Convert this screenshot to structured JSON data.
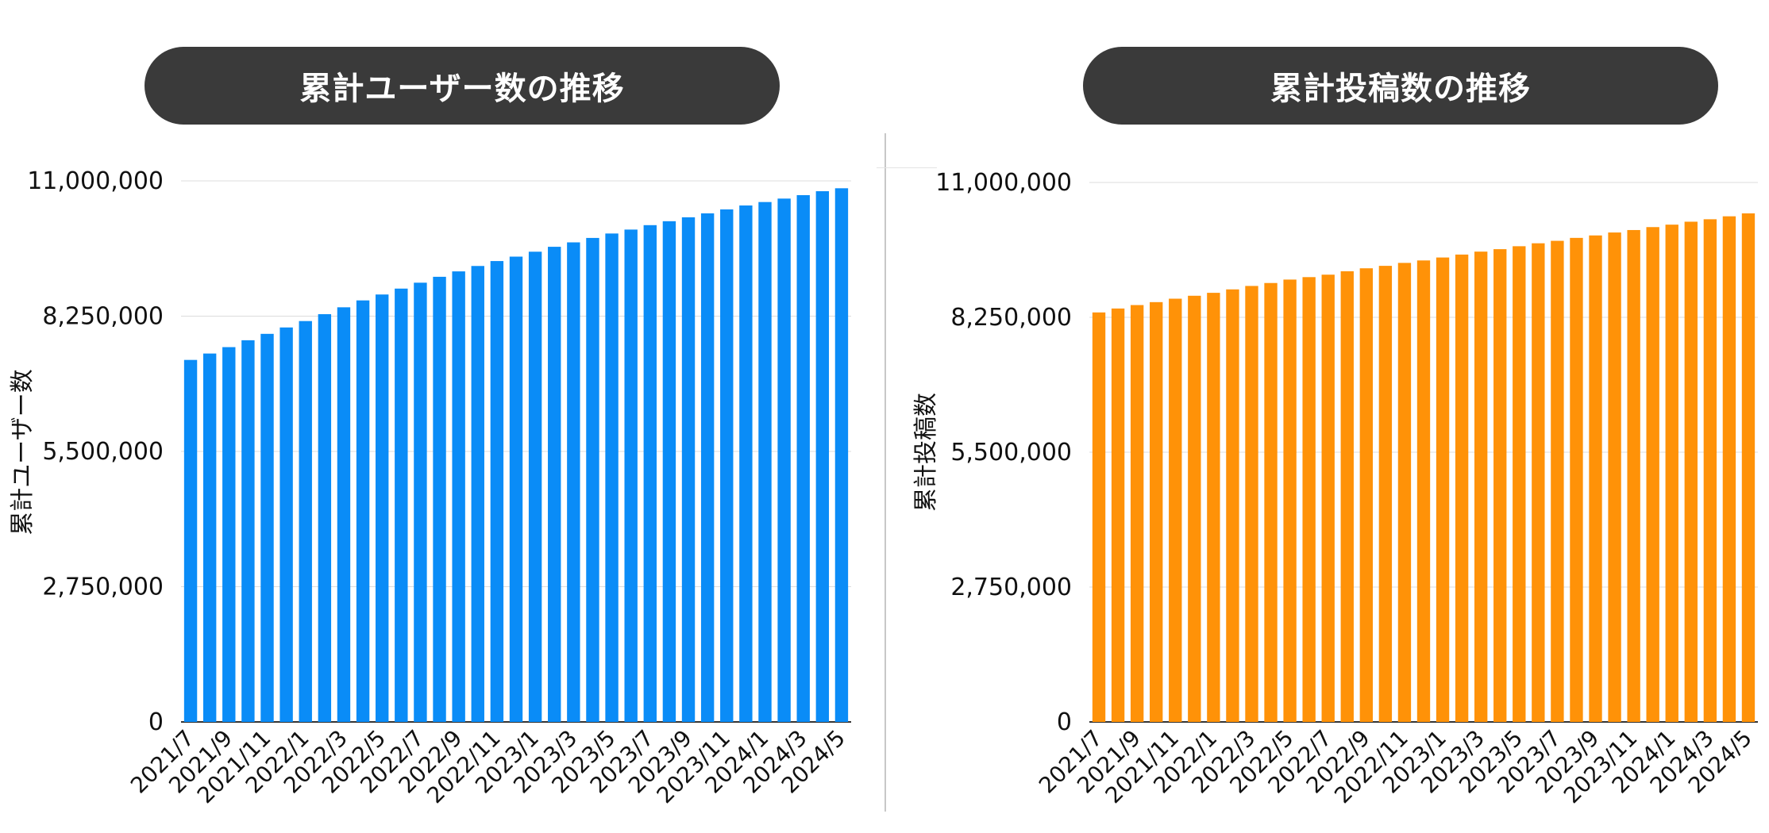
{
  "chart_data": [
    {
      "type": "bar",
      "title": "累計ユーザー数の推移",
      "xlabel": "",
      "ylabel": "累計ユーザー数",
      "color": "#0a8cf7",
      "ylim": [
        0,
        11000000
      ],
      "yticks": [
        0,
        2750000,
        5500000,
        8250000,
        11000000
      ],
      "ytick_labels": [
        "0",
        "2,750,000",
        "5,500,000",
        "8,250,000",
        "11,000,000"
      ],
      "categories": [
        "2021/7",
        "2021/8",
        "2021/9",
        "2021/10",
        "2021/11",
        "2021/12",
        "2022/1",
        "2022/2",
        "2022/3",
        "2022/4",
        "2022/5",
        "2022/6",
        "2022/7",
        "2022/8",
        "2022/9",
        "2022/10",
        "2022/11",
        "2022/12",
        "2023/1",
        "2023/2",
        "2023/3",
        "2023/4",
        "2023/5",
        "2023/6",
        "2023/7",
        "2023/8",
        "2023/9",
        "2023/10",
        "2023/11",
        "2023/12",
        "2024/1",
        "2024/2",
        "2024/3",
        "2024/4",
        "2024/5"
      ],
      "visible_tick_labels": [
        "2021/7",
        "2021/9",
        "2021/11",
        "2022/1",
        "2022/3",
        "2022/5",
        "2022/7",
        "2022/9",
        "2022/11",
        "2023/1",
        "2023/3",
        "2023/5",
        "2023/7",
        "2023/9",
        "2023/11",
        "2024/1",
        "2024/3",
        "2024/5"
      ],
      "values": [
        7360000,
        7490000,
        7620000,
        7760000,
        7890000,
        8020000,
        8150000,
        8290000,
        8430000,
        8570000,
        8690000,
        8810000,
        8930000,
        9050000,
        9160000,
        9270000,
        9370000,
        9460000,
        9560000,
        9660000,
        9750000,
        9840000,
        9930000,
        10010000,
        10100000,
        10180000,
        10260000,
        10340000,
        10420000,
        10500000,
        10570000,
        10640000,
        10710000,
        10790000,
        10850000
      ]
    },
    {
      "type": "bar",
      "title": "累計投稿数の推移",
      "xlabel": "",
      "ylabel": "累計投稿数",
      "color": "#ff9208",
      "ylim": [
        0,
        11000000
      ],
      "yticks": [
        0,
        2750000,
        5500000,
        8250000,
        11000000
      ],
      "ytick_labels": [
        "0",
        "2,750,000",
        "5,500,000",
        "8,250,000",
        "11,000,000"
      ],
      "categories": [
        "2021/7",
        "2021/8",
        "2021/9",
        "2021/10",
        "2021/11",
        "2021/12",
        "2022/1",
        "2022/2",
        "2022/3",
        "2022/4",
        "2022/5",
        "2022/6",
        "2022/7",
        "2022/8",
        "2022/9",
        "2022/10",
        "2022/11",
        "2022/12",
        "2023/1",
        "2023/2",
        "2023/3",
        "2023/4",
        "2023/5",
        "2023/6",
        "2023/7",
        "2023/8",
        "2023/9",
        "2023/10",
        "2023/11",
        "2023/12",
        "2024/1",
        "2024/2",
        "2024/3",
        "2024/4",
        "2024/5"
      ],
      "visible_tick_labels": [
        "2021/7",
        "2021/9",
        "2021/11",
        "2022/1",
        "2022/3",
        "2022/5",
        "2022/7",
        "2022/9",
        "2022/11",
        "2023/1",
        "2023/3",
        "2023/5",
        "2023/7",
        "2023/9",
        "2023/11",
        "2024/1",
        "2024/3",
        "2024/5"
      ],
      "values": [
        8350000,
        8430000,
        8500000,
        8560000,
        8630000,
        8690000,
        8750000,
        8820000,
        8890000,
        8950000,
        9020000,
        9070000,
        9120000,
        9190000,
        9250000,
        9300000,
        9360000,
        9410000,
        9470000,
        9530000,
        9590000,
        9640000,
        9700000,
        9760000,
        9810000,
        9870000,
        9920000,
        9980000,
        10030000,
        10090000,
        10140000,
        10200000,
        10250000,
        10310000,
        10370000
      ]
    }
  ]
}
